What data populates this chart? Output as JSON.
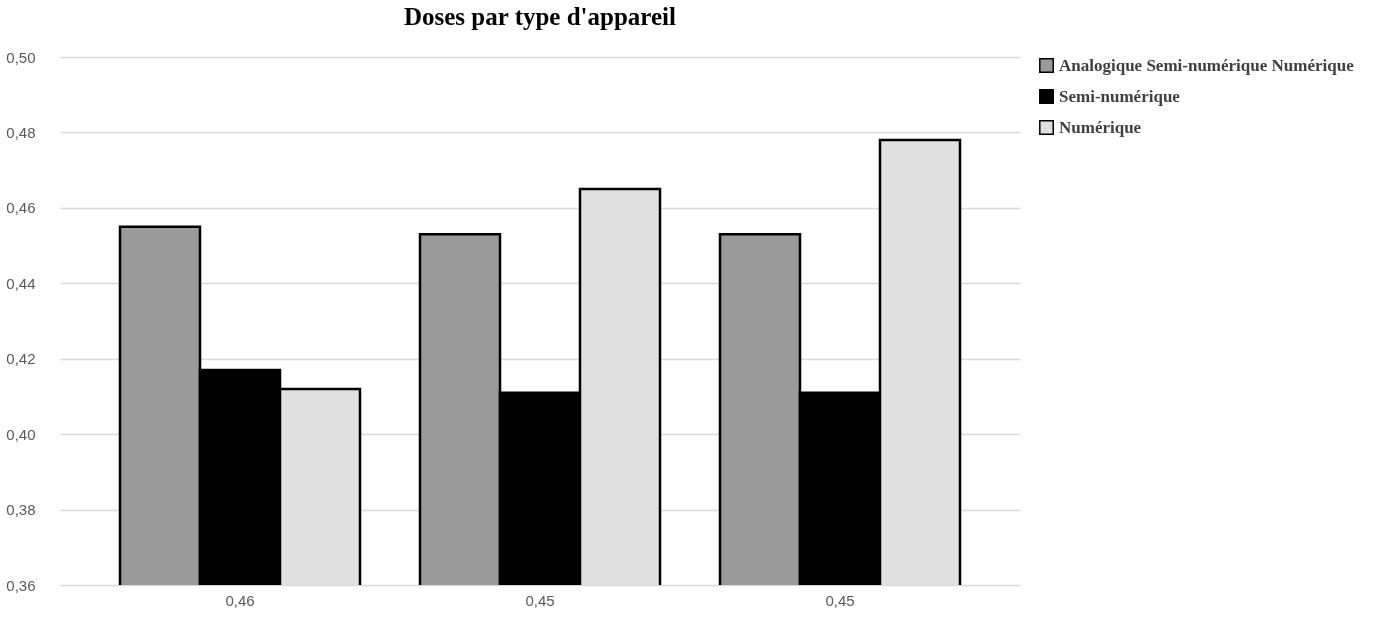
{
  "chart_data": {
    "type": "bar",
    "title": "Doses par type d'appareil",
    "categories": [
      "0,46",
      "0,45",
      "0,45"
    ],
    "series": [
      {
        "name": "Analogique Semi-numérique Numérique",
        "color": "#9a9a9a",
        "values": [
          0.455,
          0.453,
          0.453
        ]
      },
      {
        "name": "Semi-numérique",
        "color": "#000000",
        "values": [
          0.417,
          0.411,
          0.411
        ]
      },
      {
        "name": "Numérique",
        "color": "#e0e0e0",
        "values": [
          0.412,
          0.465,
          0.478
        ]
      }
    ],
    "ylim": [
      0.36,
      0.5
    ],
    "yticks": [
      {
        "value": 0.36,
        "label": "0,36"
      },
      {
        "value": 0.38,
        "label": "0,38"
      },
      {
        "value": 0.4,
        "label": "0,40"
      },
      {
        "value": 0.42,
        "label": "0,42"
      },
      {
        "value": 0.44,
        "label": "0,44"
      },
      {
        "value": 0.46,
        "label": "0,46"
      },
      {
        "value": 0.48,
        "label": "0,48"
      },
      {
        "value": 0.5,
        "label": "0,50"
      }
    ],
    "grid": "y",
    "legend": "right"
  }
}
